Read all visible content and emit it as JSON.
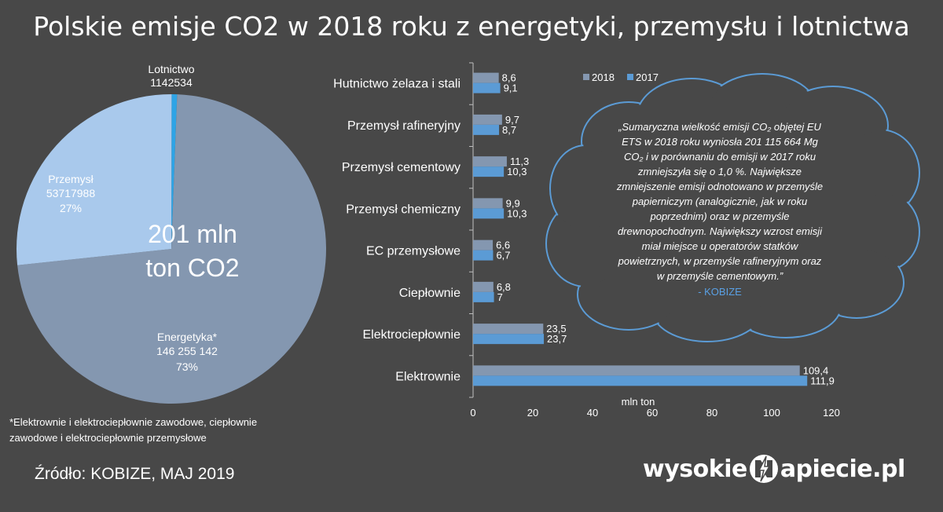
{
  "title": "Polskie emisje CO2  w 2018 roku z energetyki, przemysłu i lotnictwa",
  "chart_data": [
    {
      "type": "pie",
      "center_label": [
        "201 mln",
        "ton CO2"
      ],
      "slices": [
        {
          "name": "Energetyka*",
          "value": 146255142,
          "value_label": "146 255 142",
          "percent_label": "73%",
          "color": "#8497b0"
        },
        {
          "name": "Przemysł",
          "value": 53717988,
          "value_label": "53717988",
          "percent_label": "27%",
          "color": "#a9c9ec"
        },
        {
          "name": "Lotnictwo",
          "value": 1142534,
          "value_label": "1142534",
          "percent_label": "",
          "color": "#2ea4e6"
        }
      ]
    },
    {
      "type": "bar",
      "orientation": "horizontal",
      "categories": [
        "Hutnictwo żelaza i stali",
        "Przemysł rafineryjny",
        "Przemysł cementowy",
        "Przemysł chemiczny",
        "EC przemysłowe",
        "Ciepłownie",
        "Elektrociepłownie",
        "Elektrownie"
      ],
      "series": [
        {
          "name": "2018",
          "color": "#8497b0",
          "values": [
            8.6,
            9.7,
            11.3,
            9.9,
            6.6,
            6.8,
            23.5,
            109.4
          ],
          "labels": [
            "8,6",
            "9,7",
            "11,3",
            "9,9",
            "6,6",
            "6,8",
            "23,5",
            "109,4"
          ]
        },
        {
          "name": "2017",
          "color": "#5b9bd5",
          "values": [
            9.1,
            8.7,
            10.3,
            10.3,
            6.7,
            7,
            23.7,
            111.9
          ],
          "labels": [
            "9,1",
            "8,7",
            "10,3",
            "10,3",
            "6,7",
            "7",
            "23,7",
            "111,9"
          ]
        }
      ],
      "xlabel": "mln ton",
      "xlim": [
        0,
        120
      ],
      "xticks": [
        "0",
        "20",
        "40",
        "60",
        "80",
        "100",
        "120"
      ],
      "legend_position": "top-right"
    }
  ],
  "quote": {
    "lines": [
      "„Sumaryczna wielkość emisji CO₂ objętej EU",
      "ETS w 2018 roku wyniosła 201 115 664 Mg",
      "CO₂ i w porównaniu do emisji w 2017 roku",
      "zmniejszyła się o 1,0 %. Największe",
      "zmniejszenie emisji odnotowano w przemyśle",
      "papierniczym (analogicznie, jak w roku",
      "poprzednim) oraz w przemyśle",
      "drewnopochodnym. Największy wzrost emisji",
      "miał miejsce u operatorów statków",
      "powietrznych, w przemyśle rafineryjnym oraz",
      "w przemyśle cementowym.”"
    ],
    "author": "- KOBIZE",
    "cloud_color": "#5b9bd5"
  },
  "footnote": "*Elektrownie i elektrociepłownie zawodowe, ciepłownie zawodowe i elektrociepłownie przemysłowe",
  "source": "Źródło: KOBIZE, MAJ 2019",
  "logo": {
    "part1": "wysokie",
    "part2": "apiecie.pl"
  }
}
